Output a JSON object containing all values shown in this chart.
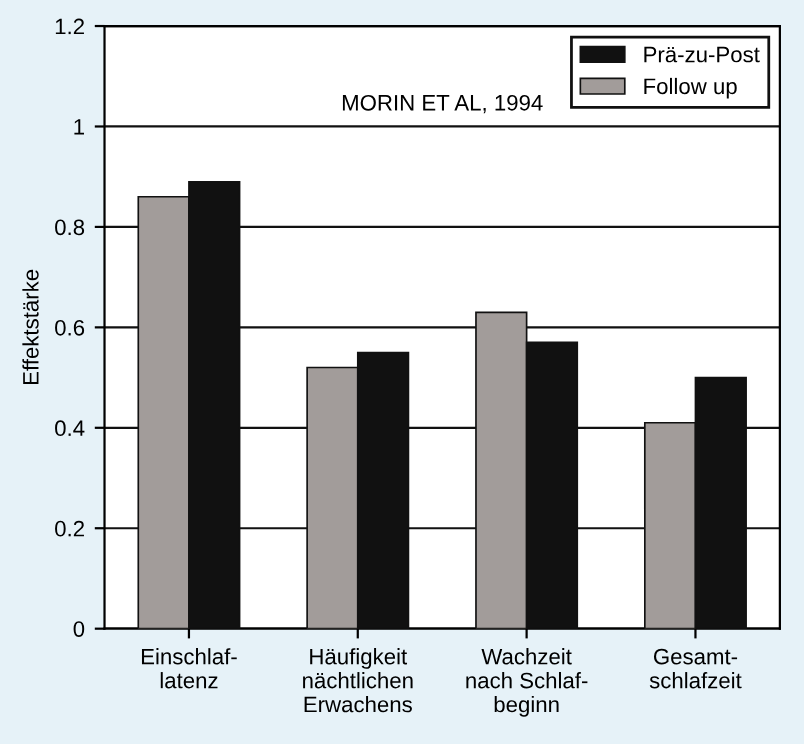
{
  "chart_data": {
    "type": "bar",
    "ylabel": "Effektstärke",
    "categories": [
      "Einschlaf-\nlatenz",
      "Häufigkeit\nnächtlichen\nErwachens",
      "Wachzeit\nnach Schlaf-\nbeginn",
      "Gesamt-\nschlafzeit"
    ],
    "series": [
      {
        "name": "Follow up",
        "color": "#a29c9a",
        "values": [
          0.86,
          0.52,
          0.63,
          0.41
        ]
      },
      {
        "name": "Prä-zu-Post",
        "color": "#111111",
        "values": [
          0.89,
          0.55,
          0.57,
          0.5
        ]
      }
    ],
    "ylim": [
      0,
      1.2
    ],
    "yticks": [
      0,
      0.2,
      0.4,
      0.6,
      0.8,
      1,
      1.2
    ],
    "grid": "y",
    "legend": "top right",
    "annotations": [
      "MORIN ET AL, 1994"
    ]
  }
}
